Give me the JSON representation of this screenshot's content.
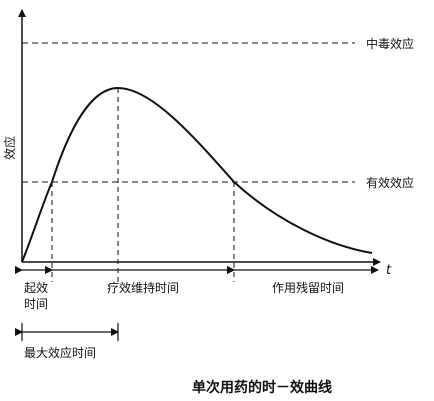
{
  "curve": {
    "y_axis_label": "效应",
    "x_axis_label": "t",
    "toxic_effect_label": "中毒效应",
    "effective_effect_label": "有效效应",
    "onset_label_line1": "起效",
    "onset_label_line2": "时间",
    "maintenance_label": "疗效维持时间",
    "residual_label": "作用残留时间",
    "peak_time_label": "最大效应时间",
    "caption": "单次用药的时－效曲线"
  },
  "colors": {
    "line": "#111111"
  }
}
